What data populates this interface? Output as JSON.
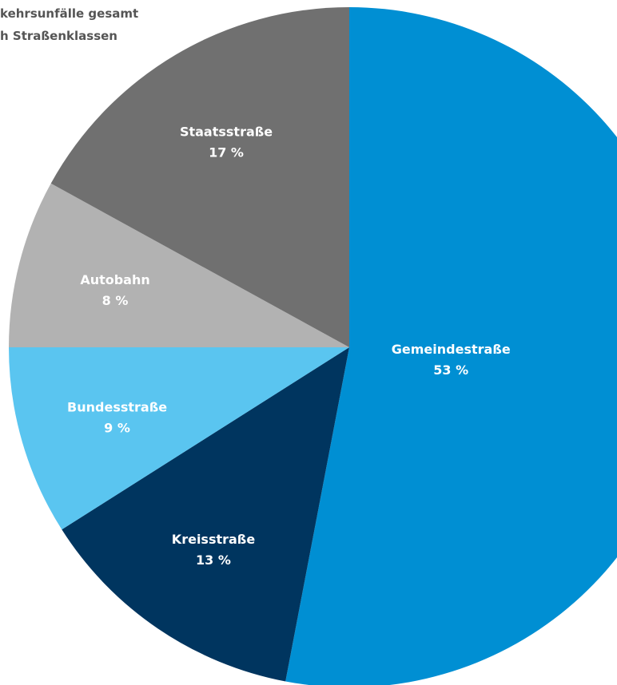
{
  "chart_data": {
    "type": "pie",
    "title_lines": [
      "kehrsunfälle gesamt",
      "h Straßenklassen"
    ],
    "categories": [
      "Gemeindestraße",
      "Kreisstraße",
      "Bundesstraße",
      "Autobahn",
      "Staatsstraße"
    ],
    "values": [
      53,
      13,
      9,
      8,
      17
    ],
    "value_labels": [
      "53 %",
      "13 %",
      "9 %",
      "8 %",
      "17 %"
    ],
    "colors": [
      "#008fd3",
      "#00355f",
      "#5ac5f0",
      "#b2b2b2",
      "#707070"
    ]
  }
}
